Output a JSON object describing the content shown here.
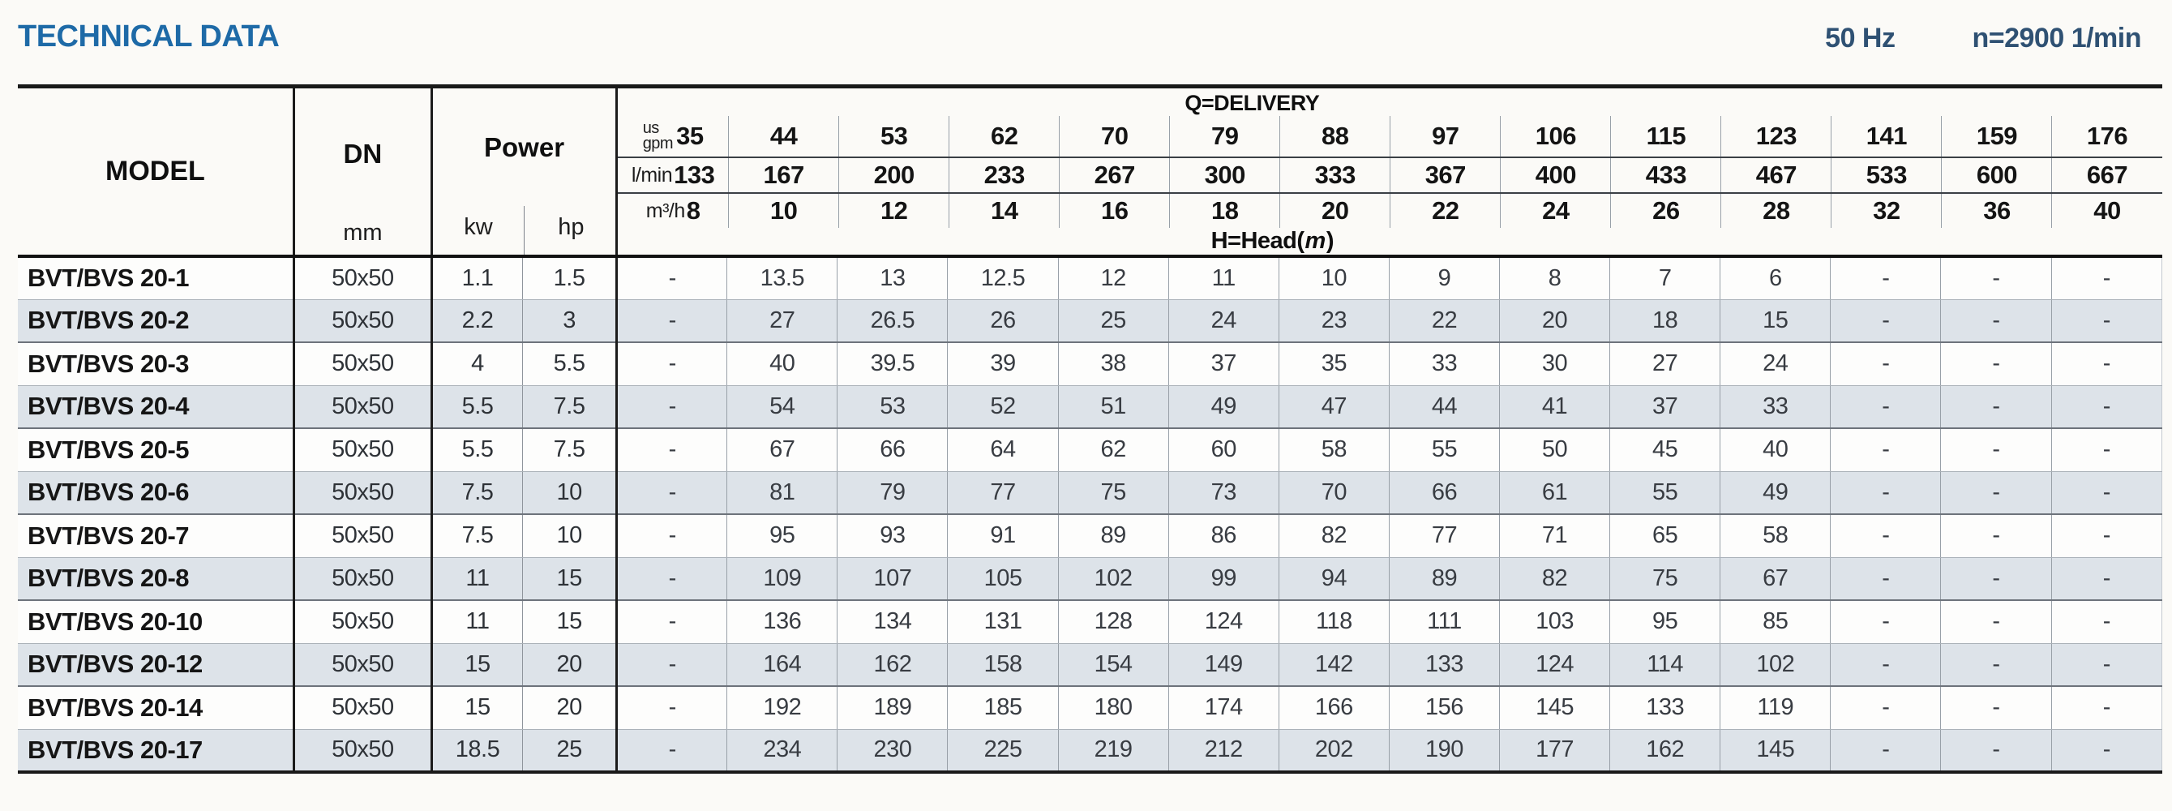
{
  "header": {
    "title": "TECHNICAL DATA",
    "frequency": "50 Hz",
    "speed": "n=2900 1/min"
  },
  "colors": {
    "title": "#1e6aa7",
    "specs": "#2f5173",
    "row_shade": "#dde3e9"
  },
  "table": {
    "model_label": "MODEL",
    "dn_label": "DN",
    "dn_unit": "mm",
    "power_label": "Power",
    "power_units": [
      "kw",
      "hp"
    ],
    "delivery_label": "Q=DELIVERY",
    "head_label": {
      "prefix": "H=Head(",
      "unit": "m",
      "suffix": ")"
    },
    "flow_units": {
      "gpm_top": "us",
      "gpm_bottom": "gpm",
      "lmin": "l/min",
      "m3h": "m³/h"
    },
    "flow": {
      "us_gpm": [
        "35",
        "44",
        "53",
        "62",
        "70",
        "79",
        "88",
        "97",
        "106",
        "115",
        "123",
        "141",
        "159",
        "176"
      ],
      "l_min": [
        "133",
        "167",
        "200",
        "233",
        "267",
        "300",
        "333",
        "367",
        "400",
        "433",
        "467",
        "533",
        "600",
        "667"
      ],
      "m3_h": [
        "8",
        "10",
        "12",
        "14",
        "16",
        "18",
        "20",
        "22",
        "24",
        "26",
        "28",
        "32",
        "36",
        "40"
      ]
    },
    "rows": [
      {
        "model": "BVT/BVS 20-1",
        "dn": "50x50",
        "kw": "1.1",
        "hp": "1.5",
        "head": [
          "-",
          "13.5",
          "13",
          "12.5",
          "12",
          "11",
          "10",
          "9",
          "8",
          "7",
          "6",
          "-",
          "-",
          "-"
        ]
      },
      {
        "model": "BVT/BVS 20-2",
        "dn": "50x50",
        "kw": "2.2",
        "hp": "3",
        "head": [
          "-",
          "27",
          "26.5",
          "26",
          "25",
          "24",
          "23",
          "22",
          "20",
          "18",
          "15",
          "-",
          "-",
          "-"
        ]
      },
      {
        "model": "BVT/BVS 20-3",
        "dn": "50x50",
        "kw": "4",
        "hp": "5.5",
        "head": [
          "-",
          "40",
          "39.5",
          "39",
          "38",
          "37",
          "35",
          "33",
          "30",
          "27",
          "24",
          "-",
          "-",
          "-"
        ]
      },
      {
        "model": "BVT/BVS 20-4",
        "dn": "50x50",
        "kw": "5.5",
        "hp": "7.5",
        "head": [
          "-",
          "54",
          "53",
          "52",
          "51",
          "49",
          "47",
          "44",
          "41",
          "37",
          "33",
          "-",
          "-",
          "-"
        ]
      },
      {
        "model": "BVT/BVS 20-5",
        "dn": "50x50",
        "kw": "5.5",
        "hp": "7.5",
        "head": [
          "-",
          "67",
          "66",
          "64",
          "62",
          "60",
          "58",
          "55",
          "50",
          "45",
          "40",
          "-",
          "-",
          "-"
        ]
      },
      {
        "model": "BVT/BVS 20-6",
        "dn": "50x50",
        "kw": "7.5",
        "hp": "10",
        "head": [
          "-",
          "81",
          "79",
          "77",
          "75",
          "73",
          "70",
          "66",
          "61",
          "55",
          "49",
          "-",
          "-",
          "-"
        ]
      },
      {
        "model": "BVT/BVS 20-7",
        "dn": "50x50",
        "kw": "7.5",
        "hp": "10",
        "head": [
          "-",
          "95",
          "93",
          "91",
          "89",
          "86",
          "82",
          "77",
          "71",
          "65",
          "58",
          "-",
          "-",
          "-"
        ]
      },
      {
        "model": "BVT/BVS 20-8",
        "dn": "50x50",
        "kw": "11",
        "hp": "15",
        "head": [
          "-",
          "109",
          "107",
          "105",
          "102",
          "99",
          "94",
          "89",
          "82",
          "75",
          "67",
          "-",
          "-",
          "-"
        ]
      },
      {
        "model": "BVT/BVS 20-10",
        "dn": "50x50",
        "kw": "11",
        "hp": "15",
        "head": [
          "-",
          "136",
          "134",
          "131",
          "128",
          "124",
          "118",
          "111",
          "103",
          "95",
          "85",
          "-",
          "-",
          "-"
        ]
      },
      {
        "model": "BVT/BVS 20-12",
        "dn": "50x50",
        "kw": "15",
        "hp": "20",
        "head": [
          "-",
          "164",
          "162",
          "158",
          "154",
          "149",
          "142",
          "133",
          "124",
          "114",
          "102",
          "-",
          "-",
          "-"
        ]
      },
      {
        "model": "BVT/BVS 20-14",
        "dn": "50x50",
        "kw": "15",
        "hp": "20",
        "head": [
          "-",
          "192",
          "189",
          "185",
          "180",
          "174",
          "166",
          "156",
          "145",
          "133",
          "119",
          "-",
          "-",
          "-"
        ]
      },
      {
        "model": "BVT/BVS 20-17",
        "dn": "50x50",
        "kw": "18.5",
        "hp": "25",
        "head": [
          "-",
          "234",
          "230",
          "225",
          "219",
          "212",
          "202",
          "190",
          "177",
          "162",
          "145",
          "-",
          "-",
          "-"
        ]
      }
    ]
  }
}
